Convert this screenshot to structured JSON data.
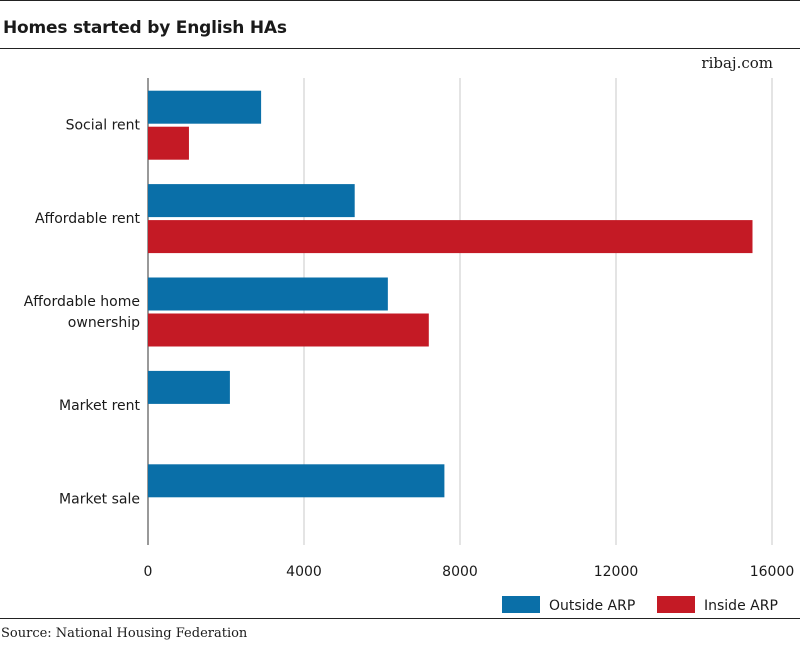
{
  "header": {
    "title": "Homes started by English HAs",
    "brand": "ribaj.com"
  },
  "footer": {
    "source": "Source: National Housing Federation"
  },
  "colors": {
    "outside": "#0a6fa8",
    "inside": "#c41a25",
    "grid": "#c8c8c8",
    "axis": "#333333"
  },
  "chart_data": {
    "type": "bar",
    "orientation": "horizontal",
    "title": "Homes started by English HAs",
    "categories": [
      [
        "Social rent"
      ],
      [
        "Affordable rent"
      ],
      [
        "Affordable home",
        "ownership"
      ],
      [
        "Market rent"
      ],
      [
        "Market sale"
      ]
    ],
    "series": [
      {
        "name": "Outside ARP",
        "color": "#0a6fa8",
        "values": [
          2900,
          5300,
          6150,
          2100,
          7600
        ]
      },
      {
        "name": "Inside ARP",
        "color": "#c41a25",
        "values": [
          1050,
          15500,
          7200,
          0,
          0
        ]
      }
    ],
    "xlim": [
      0,
      16000
    ],
    "xticks": [
      "0",
      "4000",
      "8000",
      "12000",
      "16000"
    ],
    "xtick_values": [
      0,
      4000,
      8000,
      12000,
      16000
    ],
    "grid": "vertical",
    "legend": "bottom-right"
  }
}
